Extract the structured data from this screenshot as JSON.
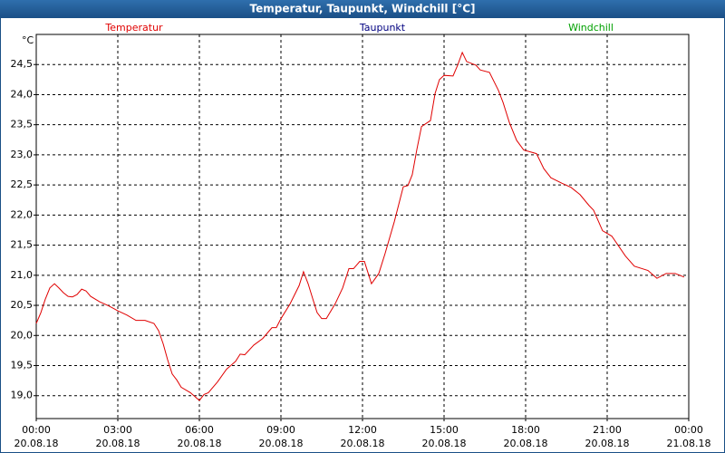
{
  "chart_data": {
    "type": "line",
    "title": "Temperatur, Taupunkt, Windchill [°C]",
    "y_unit": "°C",
    "legend": [
      {
        "name": "Temperatur",
        "color": "#e00000"
      },
      {
        "name": "Taupunkt",
        "color": "#000080"
      },
      {
        "name": "Windchill",
        "color": "#00a000"
      }
    ],
    "series": [
      {
        "name": "Temperatur",
        "color": "#e00000",
        "x": [
          0,
          0.17,
          0.33,
          0.5,
          0.67,
          0.83,
          1.0,
          1.17,
          1.33,
          1.5,
          1.67,
          1.83,
          2.0,
          2.33,
          2.67,
          3.0,
          3.33,
          3.67,
          4.0,
          4.33,
          4.5,
          4.67,
          4.83,
          5.0,
          5.17,
          5.33,
          5.67,
          6.0,
          6.17,
          6.33,
          6.67,
          7.0,
          7.33,
          7.5,
          7.67,
          8.0,
          8.33,
          8.67,
          8.83,
          9.0,
          9.33,
          9.67,
          9.83,
          10.0,
          10.17,
          10.33,
          10.5,
          10.67,
          11.0,
          11.27,
          11.5,
          11.67,
          11.9,
          12.07,
          12.33,
          12.6,
          12.83,
          13.17,
          13.5,
          13.67,
          13.83,
          14.0,
          14.17,
          14.5,
          14.67,
          14.83,
          15.0,
          15.33,
          15.5,
          15.67,
          15.83,
          16.17,
          16.33,
          16.67,
          17.0,
          17.17,
          17.4,
          17.67,
          17.93,
          18.17,
          18.4,
          18.67,
          18.93,
          19.33,
          19.67,
          20.0,
          20.33,
          20.5,
          20.83,
          21.17,
          21.67,
          22.0,
          22.5,
          22.83,
          23.17,
          23.5,
          23.83
        ],
        "values": [
          20.2,
          20.38,
          20.6,
          20.79,
          20.86,
          20.79,
          20.71,
          20.65,
          20.64,
          20.68,
          20.77,
          20.74,
          20.65,
          20.56,
          20.49,
          20.41,
          20.34,
          20.25,
          20.25,
          20.2,
          20.08,
          19.86,
          19.6,
          19.36,
          19.26,
          19.14,
          19.05,
          18.92,
          19.02,
          19.05,
          19.23,
          19.44,
          19.57,
          19.69,
          19.68,
          19.84,
          19.95,
          20.13,
          20.13,
          20.28,
          20.52,
          20.83,
          21.06,
          20.86,
          20.61,
          20.38,
          20.28,
          20.28,
          20.53,
          20.79,
          21.11,
          21.11,
          21.23,
          21.23,
          20.86,
          21.03,
          21.36,
          21.89,
          22.47,
          22.49,
          22.67,
          23.09,
          23.47,
          23.57,
          24.02,
          24.25,
          24.32,
          24.31,
          24.49,
          24.7,
          24.55,
          24.49,
          24.41,
          24.37,
          24.07,
          23.87,
          23.54,
          23.24,
          23.08,
          23.05,
          23.02,
          22.77,
          22.62,
          22.53,
          22.46,
          22.34,
          22.16,
          22.08,
          21.74,
          21.65,
          21.32,
          21.15,
          21.08,
          20.95,
          21.03,
          21.03,
          20.97
        ]
      }
    ],
    "xlim": [
      0,
      24
    ],
    "xticks": [
      {
        "value": 0,
        "label": "00:00"
      },
      {
        "value": 3,
        "label": "03:00"
      },
      {
        "value": 6,
        "label": "06:00"
      },
      {
        "value": 9,
        "label": "09:00"
      },
      {
        "value": 12,
        "label": "12:00"
      },
      {
        "value": 15,
        "label": "15:00"
      },
      {
        "value": 18,
        "label": "18:00"
      },
      {
        "value": 21,
        "label": "21:00"
      },
      {
        "value": 24,
        "label": "00:00"
      }
    ],
    "xtick_dates": [
      "20.08.18",
      "20.08.18",
      "20.08.18",
      "20.08.18",
      "20.08.18",
      "20.08.18",
      "20.08.18",
      "20.08.18",
      "21.08.18"
    ],
    "ylim": [
      18.62,
      25.0
    ],
    "yticks": [
      {
        "value": 19.0,
        "label": "19,0"
      },
      {
        "value": 19.5,
        "label": "19,5"
      },
      {
        "value": 20.0,
        "label": "20,0"
      },
      {
        "value": 20.5,
        "label": "20,5"
      },
      {
        "value": 21.0,
        "label": "21,0"
      },
      {
        "value": 21.5,
        "label": "21,5"
      },
      {
        "value": 22.0,
        "label": "22,0"
      },
      {
        "value": 22.5,
        "label": "22,5"
      },
      {
        "value": 23.0,
        "label": "23,0"
      },
      {
        "value": 23.5,
        "label": "23,5"
      },
      {
        "value": 24.0,
        "label": "24,0"
      },
      {
        "value": 24.5,
        "label": "24,5"
      }
    ],
    "grid": true
  }
}
